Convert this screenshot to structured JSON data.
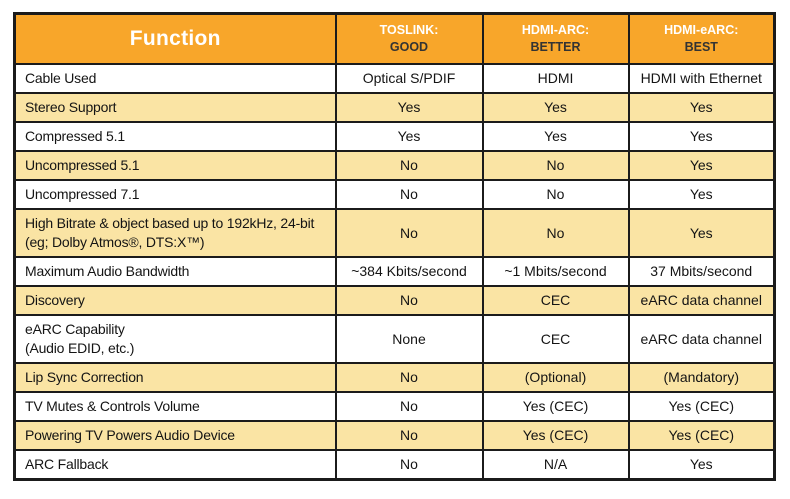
{
  "chart_data": {
    "type": "table",
    "header": {
      "function_label": "Function",
      "columns": [
        {
          "name": "TOSLINK:",
          "rating": "GOOD"
        },
        {
          "name": "HDMI-ARC:",
          "rating": "BETTER"
        },
        {
          "name": "HDMI-eARC:",
          "rating": "BEST"
        }
      ]
    },
    "rows": [
      {
        "function": "Cable Used",
        "values": [
          "Optical S/PDIF",
          "HDMI",
          "HDMI with Ethernet"
        ]
      },
      {
        "function": "Stereo Support",
        "values": [
          "Yes",
          "Yes",
          "Yes"
        ]
      },
      {
        "function": "Compressed 5.1",
        "values": [
          "Yes",
          "Yes",
          "Yes"
        ]
      },
      {
        "function": "Uncompressed 5.1",
        "values": [
          "No",
          "No",
          "Yes"
        ]
      },
      {
        "function": "Uncompressed 7.1",
        "values": [
          "No",
          "No",
          "Yes"
        ]
      },
      {
        "function": "High Bitrate & object based up to 192kHz, 24-bit\n(eg; Dolby Atmos®, DTS:X™)",
        "values": [
          "No",
          "No",
          "Yes"
        ]
      },
      {
        "function": "Maximum Audio Bandwidth",
        "values": [
          "~384 Kbits/second",
          "~1 Mbits/second",
          "37 Mbits/second"
        ]
      },
      {
        "function": "Discovery",
        "values": [
          "No",
          "CEC",
          "eARC data channel"
        ]
      },
      {
        "function": "eARC Capability\n(Audio EDID, etc.)",
        "values": [
          "None",
          "CEC",
          "eARC data channel"
        ]
      },
      {
        "function": "Lip Sync Correction",
        "values": [
          "No",
          "(Optional)",
          "(Mandatory)"
        ]
      },
      {
        "function": "TV Mutes & Controls Volume",
        "values": [
          "No",
          "Yes (CEC)",
          "Yes (CEC)"
        ]
      },
      {
        "function": "Powering TV Powers Audio Device",
        "values": [
          "No",
          "Yes (CEC)",
          "Yes (CEC)"
        ]
      },
      {
        "function": "ARC Fallback",
        "values": [
          "No",
          "N/A",
          "Yes"
        ]
      }
    ],
    "layout": {
      "row_striping": "alternate starting at second body row",
      "first_column_align": "left",
      "value_columns_align": "center"
    }
  },
  "colors": {
    "header_bg": "#f8a62a",
    "alt_row_bg": "#fae4a4",
    "row_bg": "#ffffff",
    "border": "#1b1b1b",
    "header_function_text": "#ffffff",
    "header_column_name_text": "#ffffff",
    "header_rating_text": "#333333",
    "body_text": "#141414"
  }
}
